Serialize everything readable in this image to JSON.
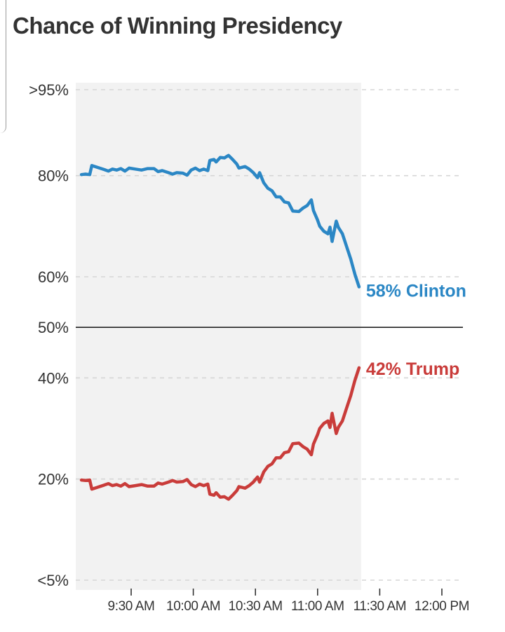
{
  "title": "Chance of Winning Presidency",
  "colors": {
    "clinton": "#2b87c5",
    "trump": "#c93c3a",
    "band": "#f2f2f2",
    "grid": "#d6d6d6",
    "midline": "#222222",
    "text": "#333333"
  },
  "chart_data": {
    "type": "line",
    "title": "Chance of Winning Presidency",
    "xlabel": "",
    "ylabel": "",
    "x_ticks": [
      "9:30 AM",
      "10:00 AM",
      "10:30 AM",
      "11:00 AM",
      "11:30 AM",
      "12:00 PM"
    ],
    "y_ticks": [
      {
        "value": 97,
        "label": ">95%"
      },
      {
        "value": 80,
        "label": "80%"
      },
      {
        "value": 60,
        "label": "60%"
      },
      {
        "value": 50,
        "label": "50%"
      },
      {
        "value": 40,
        "label": "40%"
      },
      {
        "value": 20,
        "label": "20%"
      },
      {
        "value": 0,
        "label": "<5%"
      }
    ],
    "ylim": [
      0,
      97
    ],
    "grid": true,
    "shaded_range": [
      "9:06 AM",
      "11:21 AM"
    ],
    "series": [
      {
        "name": "Clinton",
        "end_label": "58% Clinton",
        "color": "#2b87c5",
        "points": [
          [
            "9:06",
            80.2
          ],
          [
            "9:08",
            80.3
          ],
          [
            "9:10",
            80.2
          ],
          [
            "9:11",
            82.0
          ],
          [
            "9:14",
            81.6
          ],
          [
            "9:17",
            81.2
          ],
          [
            "9:19",
            80.9
          ],
          [
            "9:21",
            81.3
          ],
          [
            "9:23",
            81.1
          ],
          [
            "9:25",
            81.4
          ],
          [
            "9:27",
            80.9
          ],
          [
            "9:29",
            81.5
          ],
          [
            "9:32",
            81.3
          ],
          [
            "9:35",
            81.1
          ],
          [
            "9:38",
            81.4
          ],
          [
            "9:41",
            81.4
          ],
          [
            "9:43",
            80.8
          ],
          [
            "9:45",
            81.0
          ],
          [
            "9:48",
            80.6
          ],
          [
            "9:50",
            80.3
          ],
          [
            "9:52",
            80.6
          ],
          [
            "9:55",
            80.5
          ],
          [
            "9:57",
            80.1
          ],
          [
            "9:59",
            81.1
          ],
          [
            "10:01",
            81.5
          ],
          [
            "10:03",
            81.0
          ],
          [
            "10:05",
            81.3
          ],
          [
            "10:07",
            81.0
          ],
          [
            "10:08",
            83.0
          ],
          [
            "10:10",
            83.2
          ],
          [
            "10:11",
            82.7
          ],
          [
            "10:13",
            83.6
          ],
          [
            "10:15",
            83.5
          ],
          [
            "10:17",
            84.0
          ],
          [
            "10:19",
            83.2
          ],
          [
            "10:21",
            82.3
          ],
          [
            "10:22",
            81.5
          ],
          [
            "10:25",
            81.8
          ],
          [
            "10:27",
            81.3
          ],
          [
            "10:29",
            80.6
          ],
          [
            "10:31",
            79.6
          ],
          [
            "10:32",
            80.6
          ],
          [
            "10:34",
            78.6
          ],
          [
            "10:36",
            77.5
          ],
          [
            "10:38",
            77.0
          ],
          [
            "10:40",
            75.8
          ],
          [
            "10:42",
            75.8
          ],
          [
            "10:44",
            74.8
          ],
          [
            "10:46",
            74.6
          ],
          [
            "10:48",
            73.0
          ],
          [
            "10:51",
            72.9
          ],
          [
            "10:53",
            73.6
          ],
          [
            "10:55",
            74.1
          ],
          [
            "10:57",
            75.2
          ],
          [
            "10:58",
            73.1
          ],
          [
            "11:00",
            71.2
          ],
          [
            "11:01",
            70.0
          ],
          [
            "11:03",
            69.0
          ],
          [
            "11:05",
            68.5
          ],
          [
            "11:06",
            69.8
          ],
          [
            "11:07",
            67.0
          ],
          [
            "11:09",
            71.0
          ],
          [
            "11:10",
            69.8
          ],
          [
            "11:12",
            68.5
          ],
          [
            "11:14",
            66.0
          ],
          [
            "11:16",
            63.5
          ],
          [
            "11:17",
            62.0
          ],
          [
            "11:18",
            60.5
          ],
          [
            "11:20",
            58.0
          ]
        ]
      },
      {
        "name": "Trump",
        "end_label": "42% Trump",
        "color": "#c93c3a",
        "points": [
          [
            "9:06",
            19.8
          ],
          [
            "9:08",
            19.7
          ],
          [
            "9:10",
            19.8
          ],
          [
            "9:11",
            18.0
          ],
          [
            "9:14",
            18.4
          ],
          [
            "9:17",
            18.8
          ],
          [
            "9:19",
            19.1
          ],
          [
            "9:21",
            18.7
          ],
          [
            "9:23",
            18.9
          ],
          [
            "9:25",
            18.6
          ],
          [
            "9:27",
            19.1
          ],
          [
            "9:29",
            18.5
          ],
          [
            "9:32",
            18.7
          ],
          [
            "9:35",
            18.9
          ],
          [
            "9:38",
            18.6
          ],
          [
            "9:41",
            18.6
          ],
          [
            "9:43",
            19.2
          ],
          [
            "9:45",
            19.0
          ],
          [
            "9:48",
            19.4
          ],
          [
            "9:50",
            19.7
          ],
          [
            "9:52",
            19.4
          ],
          [
            "9:55",
            19.5
          ],
          [
            "9:57",
            19.9
          ],
          [
            "9:59",
            18.9
          ],
          [
            "10:01",
            18.5
          ],
          [
            "10:03",
            19.0
          ],
          [
            "10:05",
            18.7
          ],
          [
            "10:07",
            19.0
          ],
          [
            "10:08",
            17.0
          ],
          [
            "10:10",
            16.8
          ],
          [
            "10:11",
            17.3
          ],
          [
            "10:13",
            16.4
          ],
          [
            "10:15",
            16.5
          ],
          [
            "10:17",
            16.0
          ],
          [
            "10:19",
            16.8
          ],
          [
            "10:21",
            17.7
          ],
          [
            "10:22",
            18.5
          ],
          [
            "10:25",
            18.2
          ],
          [
            "10:27",
            18.7
          ],
          [
            "10:29",
            19.4
          ],
          [
            "10:31",
            20.4
          ],
          [
            "10:32",
            19.4
          ],
          [
            "10:34",
            21.4
          ],
          [
            "10:36",
            22.5
          ],
          [
            "10:38",
            23.0
          ],
          [
            "10:40",
            24.2
          ],
          [
            "10:42",
            24.2
          ],
          [
            "10:44",
            25.2
          ],
          [
            "10:46",
            25.4
          ],
          [
            "10:48",
            27.0
          ],
          [
            "10:51",
            27.1
          ],
          [
            "10:53",
            26.4
          ],
          [
            "10:55",
            25.9
          ],
          [
            "10:57",
            24.8
          ],
          [
            "10:58",
            26.9
          ],
          [
            "11:00",
            28.8
          ],
          [
            "11:01",
            30.0
          ],
          [
            "11:03",
            31.0
          ],
          [
            "11:05",
            31.5
          ],
          [
            "11:06",
            30.2
          ],
          [
            "11:07",
            33.0
          ],
          [
            "11:09",
            29.0
          ],
          [
            "11:10",
            30.2
          ],
          [
            "11:12",
            31.5
          ],
          [
            "11:14",
            34.0
          ],
          [
            "11:16",
            36.5
          ],
          [
            "11:17",
            38.0
          ],
          [
            "11:18",
            39.5
          ],
          [
            "11:20",
            42.0
          ]
        ]
      }
    ]
  }
}
